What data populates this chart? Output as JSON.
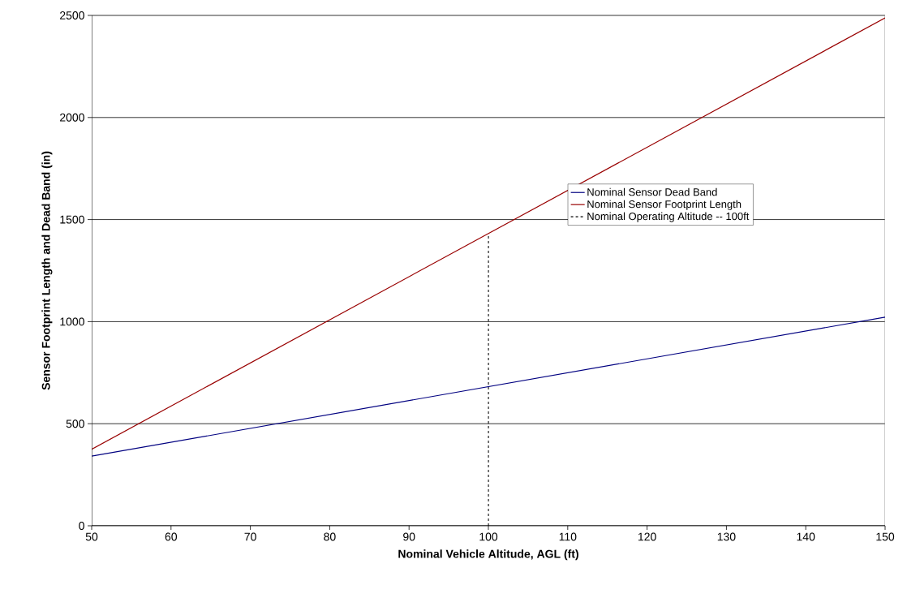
{
  "chart_data": {
    "type": "line",
    "xlabel": "Nominal Vehicle Altitude, AGL (ft)",
    "ylabel": "Sensor Footprint Length and Dead Band (in)",
    "x": [
      50,
      150
    ],
    "series": [
      {
        "name": "Nominal Sensor Dead Band",
        "color": "#000080",
        "values": [
          341,
          1022
        ]
      },
      {
        "name": "Nominal Sensor Footprint Length",
        "color": "#990000",
        "values": [
          375,
          2488
        ]
      },
      {
        "name": "Nominal Operating Altitude -- 100ft",
        "color": "#000000",
        "x": [
          100,
          100
        ],
        "values": [
          0,
          1430
        ],
        "line_style": "dotted"
      }
    ],
    "xlim": [
      50,
      150
    ],
    "ylim": [
      0,
      2500
    ],
    "xticks": [
      50,
      60,
      70,
      80,
      90,
      100,
      110,
      120,
      130,
      140,
      150
    ],
    "yticks": [
      0,
      500,
      1000,
      1500,
      2000,
      2500
    ],
    "grid": "y",
    "legend": "right",
    "marker": "none",
    "line_style": "solid"
  }
}
